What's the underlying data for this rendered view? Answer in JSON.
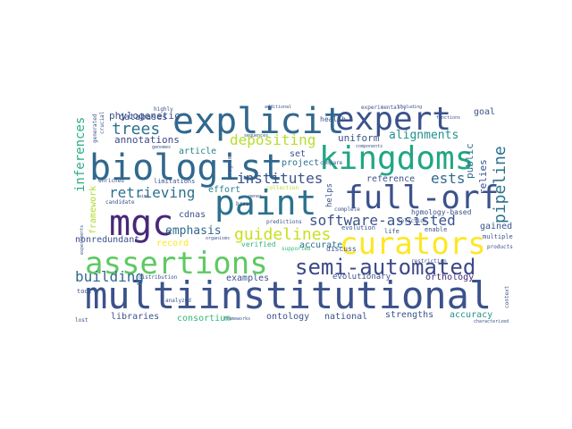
{
  "palette": {
    "navy": "#3b528b",
    "indigo": "#482878",
    "purple": "#440154",
    "teal": "#21918c",
    "cyan": "#26828e",
    "green": "#35b779",
    "lime": "#6ece58",
    "yellow": "#fde725",
    "chartreuse": "#b5de2b"
  },
  "words": [
    {
      "text": "multiinstitutional",
      "color": "#3b528b"
    },
    {
      "text": "biologist",
      "color": "#31688e"
    },
    {
      "text": "explicit",
      "color": "#31688e"
    },
    {
      "text": "expert",
      "color": "#3b528b"
    },
    {
      "text": "kingdoms",
      "color": "#21a685"
    },
    {
      "text": "paint",
      "color": "#2c728e"
    },
    {
      "text": "full-orf",
      "color": "#3b528b"
    },
    {
      "text": "assertions",
      "color": "#5ec962"
    },
    {
      "text": "curators",
      "color": "#fde725"
    },
    {
      "text": "semi-automated",
      "color": "#3e4989"
    },
    {
      "text": "mgc",
      "color": "#482878"
    },
    {
      "text": "software-assisted",
      "color": "#3b528b"
    },
    {
      "text": "pipeline",
      "color": "#2c728e"
    },
    {
      "text": "guidelines",
      "color": "#c8e020"
    },
    {
      "text": "institutes",
      "color": "#3b528b"
    },
    {
      "text": "ests",
      "color": "#31688e"
    },
    {
      "text": "retrieving",
      "color": "#2c728e"
    },
    {
      "text": "trees",
      "color": "#2c728e"
    },
    {
      "text": "depositing",
      "color": "#b5de2b"
    },
    {
      "text": "inferences",
      "color": "#27ad81"
    },
    {
      "text": "building",
      "color": "#31688e"
    },
    {
      "text": "framework",
      "color": "#addc30"
    },
    {
      "text": "emphasis",
      "color": "#31688e"
    },
    {
      "text": "annotations",
      "color": "#3e4989"
    },
    {
      "text": "phylogenetic",
      "color": "#3b528b"
    },
    {
      "text": "alignments",
      "color": "#21918c"
    },
    {
      "text": "databases",
      "color": "#3b528b"
    },
    {
      "text": "article",
      "color": "#26828e"
    },
    {
      "text": "effort",
      "color": "#26828e"
    },
    {
      "text": "uniform",
      "color": "#3b528b"
    },
    {
      "text": "project",
      "color": "#2c728e"
    },
    {
      "text": "set",
      "color": "#3b528b"
    },
    {
      "text": "cdnas",
      "color": "#3b528b"
    },
    {
      "text": "reference",
      "color": "#3b528b"
    },
    {
      "text": "public",
      "color": "#2c728e"
    },
    {
      "text": "relies",
      "color": "#3b528b"
    },
    {
      "text": "goal",
      "color": "#3b528b"
    },
    {
      "text": "nonredundant",
      "color": "#3b528b"
    },
    {
      "text": "record",
      "color": "#fde725"
    },
    {
      "text": "accurate",
      "color": "#2c728e"
    },
    {
      "text": "examples",
      "color": "#3b528b"
    },
    {
      "text": "evolutionary",
      "color": "#3b528b"
    },
    {
      "text": "orthology",
      "color": "#482878"
    },
    {
      "text": "gained",
      "color": "#3b528b"
    },
    {
      "text": "libraries",
      "color": "#3b528b"
    },
    {
      "text": "consortium",
      "color": "#35b779"
    },
    {
      "text": "ontology",
      "color": "#3b528b"
    },
    {
      "text": "national",
      "color": "#3b528b"
    },
    {
      "text": "strengths",
      "color": "#3b528b"
    },
    {
      "text": "accuracy",
      "color": "#21918c"
    },
    {
      "text": "homology-based",
      "color": "#3b528b"
    },
    {
      "text": "evolution",
      "color": "#3b528b"
    },
    {
      "text": "health",
      "color": "#3b528b"
    },
    {
      "text": "verified",
      "color": "#35b779"
    },
    {
      "text": "supported",
      "color": "#35b779"
    },
    {
      "text": "discuss",
      "color": "#3b528b"
    },
    {
      "text": "selection",
      "color": "#3b528b"
    },
    {
      "text": "enable",
      "color": "#3b528b"
    },
    {
      "text": "multiple",
      "color": "#3b528b"
    },
    {
      "text": "products",
      "color": "#3b528b"
    },
    {
      "text": "restriction",
      "color": "#3b528b"
    },
    {
      "text": "complete",
      "color": "#3b528b"
    },
    {
      "text": "limitations",
      "color": "#3b528b"
    },
    {
      "text": "distribution",
      "color": "#3b528b"
    },
    {
      "text": "candidate",
      "color": "#3b528b"
    },
    {
      "text": "enriched",
      "color": "#3b528b"
    },
    {
      "text": "helps",
      "color": "#3b528b"
    },
    {
      "text": "analyzed",
      "color": "#3b528b"
    },
    {
      "text": "broad",
      "color": "#3b528b"
    },
    {
      "text": "collection",
      "color": "#b5de2b"
    },
    {
      "text": "compare",
      "color": "#3b528b"
    },
    {
      "text": "experimentally",
      "color": "#3b528b"
    },
    {
      "text": "highly",
      "color": "#3b528b"
    },
    {
      "text": "crucial",
      "color": "#3b528b"
    },
    {
      "text": "generated",
      "color": "#3b528b"
    },
    {
      "text": "genomes",
      "color": "#3b528b"
    },
    {
      "text": "sequences",
      "color": "#3b528b"
    },
    {
      "text": "components",
      "color": "#3b528b"
    },
    {
      "text": "including",
      "color": "#3b528b"
    },
    {
      "text": "additional",
      "color": "#3b528b"
    },
    {
      "text": "functions",
      "color": "#3b528b"
    },
    {
      "text": "life",
      "color": "#3b528b"
    },
    {
      "text": "tool",
      "color": "#3b528b"
    },
    {
      "text": "lost",
      "color": "#3b528b"
    },
    {
      "text": "characterized",
      "color": "#3b528b"
    },
    {
      "text": "context",
      "color": "#3b528b"
    },
    {
      "text": "frameworks",
      "color": "#3b528b"
    },
    {
      "text": "experiments",
      "color": "#3b528b"
    },
    {
      "text": "program",
      "color": "#3b528b"
    },
    {
      "text": "aims",
      "color": "#3b528b"
    },
    {
      "text": "genes",
      "color": "#3b528b"
    },
    {
      "text": "predictions",
      "color": "#3b528b"
    },
    {
      "text": "organisms",
      "color": "#3b528b"
    }
  ]
}
